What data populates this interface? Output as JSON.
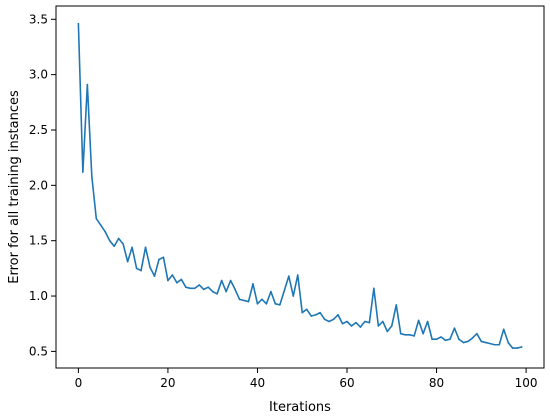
{
  "chart_data": {
    "type": "line",
    "title": "",
    "xlabel": "Iterations",
    "ylabel": "Error for all training instances",
    "xlim": [
      -5,
      104
    ],
    "ylim": [
      0.35,
      3.62
    ],
    "xticks": [
      0,
      20,
      40,
      60,
      80,
      100
    ],
    "xtick_labels": [
      "0",
      "20",
      "40",
      "60",
      "80",
      "100"
    ],
    "yticks": [
      0.5,
      1.0,
      1.5,
      2.0,
      2.5,
      3.0,
      3.5
    ],
    "ytick_labels": [
      "0.5",
      "1.0",
      "1.5",
      "2.0",
      "2.5",
      "3.0",
      "3.5"
    ],
    "grid": false,
    "line_color": "#1f77b4",
    "series": [
      {
        "x": [
          0,
          1,
          2,
          3,
          4,
          5,
          6,
          7,
          8,
          9,
          10,
          11,
          12,
          13,
          14,
          15,
          16,
          17,
          18,
          19,
          20,
          21,
          22,
          23,
          24,
          25,
          26,
          27,
          28,
          29,
          30,
          31,
          32,
          33,
          34,
          35,
          36,
          37,
          38,
          39,
          40,
          41,
          42,
          43,
          44,
          45,
          46,
          47,
          48,
          49,
          50,
          51,
          52,
          53,
          54,
          55,
          56,
          57,
          58,
          59,
          60,
          61,
          62,
          63,
          64,
          65,
          66,
          67,
          68,
          69,
          70,
          71,
          72,
          73,
          74,
          75,
          76,
          77,
          78,
          79,
          80,
          81,
          82,
          83,
          84,
          85,
          86,
          87,
          88,
          89,
          90,
          91,
          92,
          93,
          94,
          95,
          96,
          97,
          98,
          99
        ],
        "values": [
          3.46,
          2.12,
          2.91,
          2.08,
          1.7,
          1.64,
          1.58,
          1.5,
          1.45,
          1.52,
          1.47,
          1.31,
          1.44,
          1.25,
          1.23,
          1.44,
          1.26,
          1.18,
          1.33,
          1.35,
          1.14,
          1.19,
          1.12,
          1.15,
          1.08,
          1.07,
          1.07,
          1.1,
          1.06,
          1.08,
          1.04,
          1.02,
          1.14,
          1.04,
          1.14,
          1.06,
          0.97,
          0.96,
          0.95,
          1.11,
          0.93,
          0.97,
          0.93,
          1.04,
          0.93,
          0.92,
          1.05,
          1.18,
          1.0,
          1.19,
          0.85,
          0.88,
          0.82,
          0.83,
          0.85,
          0.79,
          0.77,
          0.79,
          0.83,
          0.75,
          0.77,
          0.73,
          0.76,
          0.72,
          0.77,
          0.76,
          1.07,
          0.73,
          0.77,
          0.68,
          0.73,
          0.92,
          0.66,
          0.65,
          0.65,
          0.64,
          0.78,
          0.66,
          0.77,
          0.61,
          0.61,
          0.63,
          0.6,
          0.61,
          0.71,
          0.61,
          0.58,
          0.59,
          0.62,
          0.66,
          0.59,
          0.58,
          0.57,
          0.56,
          0.56,
          0.7,
          0.58,
          0.53,
          0.53,
          0.54
        ]
      }
    ]
  }
}
